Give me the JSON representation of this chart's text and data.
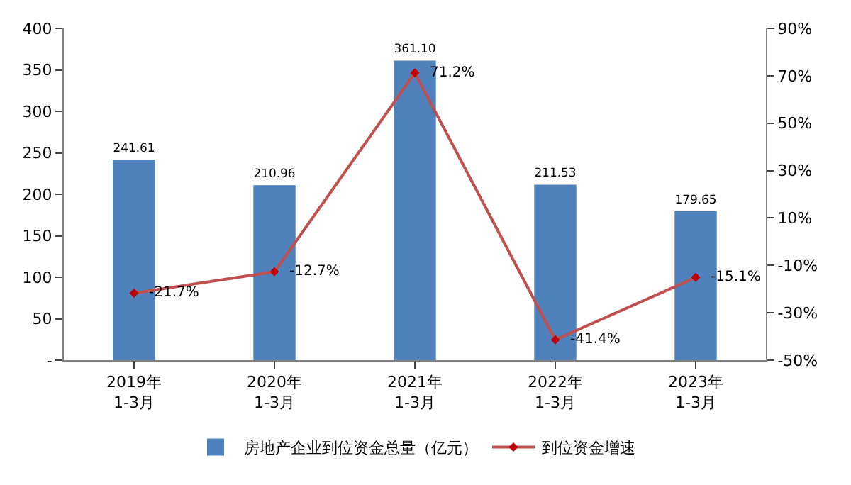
{
  "chart_data": {
    "type": "bar",
    "categories": [
      "2019年\n1-3月",
      "2020年\n1-3月",
      "2021年\n1-3月",
      "2022年\n1-3月",
      "2023年\n1-3月"
    ],
    "series": [
      {
        "name": "房地产企业到位资金总量（亿元）",
        "color": "#4f81bd",
        "values": [
          241.61,
          210.96,
          361.1,
          211.53,
          179.65
        ],
        "value_labels": [
          "241.61",
          "210.96",
          "361.10",
          "211.53",
          "179.65"
        ]
      },
      {
        "name": "到位资金增速",
        "type": "line",
        "axis": "y2",
        "color": "#c0504d",
        "values": [
          -21.7,
          -12.7,
          71.2,
          -41.4,
          -15.1
        ],
        "value_labels": [
          "-21.7%",
          "-12.7%",
          "71.2%",
          "-41.4%",
          "-15.1%"
        ]
      }
    ],
    "ylim": [
      0,
      400
    ],
    "yticks": [
      {
        "value": 0,
        "label": "-"
      },
      50,
      100,
      150,
      200,
      250,
      300,
      350,
      400
    ],
    "y2lim": [
      -50,
      90
    ],
    "y2ticks": [
      {
        "value": -50,
        "label": "-50%"
      },
      {
        "value": -30,
        "label": "-30%"
      },
      {
        "value": -10,
        "label": "-10%"
      },
      {
        "value": 10,
        "label": "10%"
      },
      {
        "value": 30,
        "label": "30%"
      },
      {
        "value": 50,
        "label": "50%"
      },
      {
        "value": 70,
        "label": "70%"
      },
      {
        "value": 90,
        "label": "90%"
      }
    ],
    "marker": "diamond",
    "legend": "bottom"
  }
}
